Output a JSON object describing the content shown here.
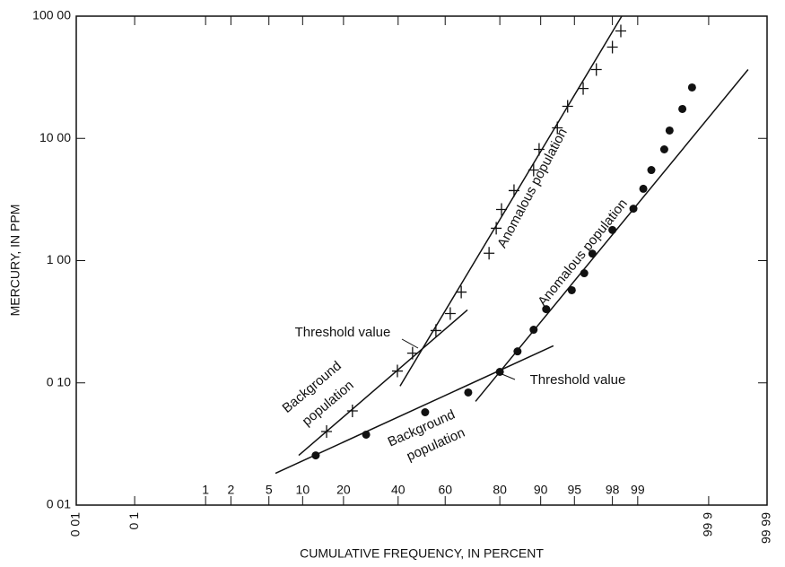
{
  "chart_data": {
    "type": "scatter",
    "xscale": "probability",
    "yscale": "log",
    "x_label": "CUMULATIVE FREQUENCY, IN PERCENT",
    "y_label": "MERCURY, IN PPM",
    "xlim": [
      0.01,
      99.99
    ],
    "ylim": [
      0.01,
      100
    ],
    "xticks": [
      {
        "value": 0.01,
        "label": "0 01"
      },
      {
        "value": 0.1,
        "label": "0 1"
      },
      1,
      2,
      5,
      10,
      20,
      40,
      60,
      80,
      90,
      95,
      98,
      99,
      {
        "value": 99.9,
        "label": "99 9"
      },
      {
        "value": 99.99,
        "label": "99 99"
      }
    ],
    "yticks": [
      {
        "value": 0.01,
        "label": "0 01"
      },
      {
        "value": 0.1,
        "label": "0 10"
      },
      {
        "value": 1,
        "label": "1 00"
      },
      {
        "value": 10,
        "label": "10 00"
      },
      {
        "value": 100,
        "label": "100 00"
      }
    ],
    "color": "#111111",
    "series": [
      {
        "marker": "plus",
        "x": [
          15.3,
          22.8,
          39.7,
          46.1,
          56.1,
          62.1,
          66.5,
          76.6,
          78.9,
          80.5,
          84.0,
          88.6,
          89.7,
          92.8,
          94.2,
          95.9,
          97.0,
          98.0,
          98.4
        ],
        "values": [
          0.04,
          0.059,
          0.125,
          0.175,
          0.268,
          0.369,
          0.553,
          1.15,
          1.84,
          2.62,
          3.74,
          5.51,
          8.13,
          12.2,
          18.3,
          25.6,
          36.6,
          55.8,
          75.7
        ]
      },
      {
        "marker": "dot",
        "x": [
          12.7,
          27.5,
          51.5,
          69.2,
          80.0,
          84.9,
          88.6,
          91.0,
          94.7,
          96.0,
          96.7,
          98.0,
          98.87,
          99.15,
          99.33,
          99.55,
          99.62,
          99.75,
          99.82
        ],
        "values": [
          0.0255,
          0.0377,
          0.0575,
          0.0834,
          0.123,
          0.181,
          0.272,
          0.401,
          0.573,
          0.789,
          1.14,
          1.78,
          2.66,
          3.87,
          5.51,
          8.13,
          11.6,
          17.4,
          26.1
        ]
      }
    ],
    "fit_lines": [
      {
        "x": [
          9.28,
          68.9
        ],
        "values": [
          0.0255,
          0.395
        ]
      },
      {
        "x": [
          40.8,
          98.44
        ],
        "values": [
          0.094,
          100
        ]
      },
      {
        "x": [
          5.77,
          92.2
        ],
        "values": [
          0.0182,
          0.201
        ]
      },
      {
        "x": [
          71.9,
          99.978
        ],
        "values": [
          0.0705,
          36.6
        ]
      }
    ],
    "annotations": [
      "Threshold value",
      "Threshold value",
      "Background",
      "population",
      "Background",
      "population",
      "Anomalous population",
      "Anomalous population"
    ]
  }
}
